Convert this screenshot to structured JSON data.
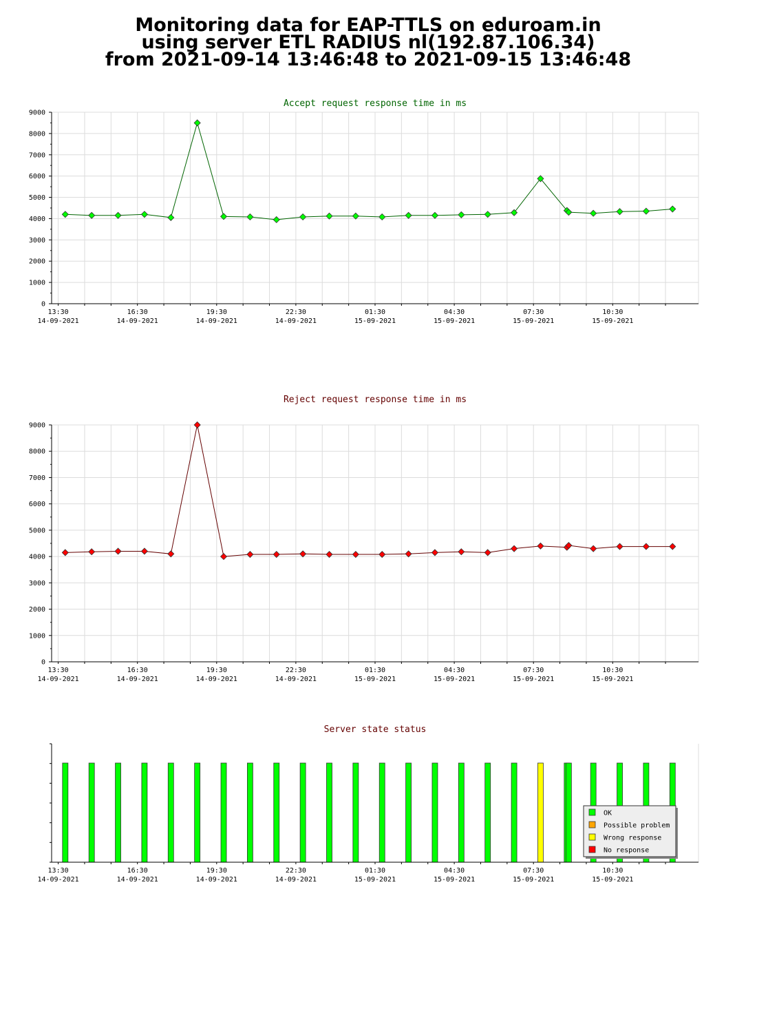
{
  "page": {
    "title_line1": "Monitoring data for EAP-TTLS on eduroam.in",
    "title_line2": "using server ETL RADIUS nl(192.87.106.34)",
    "title_line3": "from 2021-09-14 13:46:48 to 2021-09-15 13:46:48"
  },
  "chart_data": [
    {
      "type": "line",
      "title": "Accept request response time in ms",
      "title_color": "#006400",
      "line_color": "#006400",
      "marker_color": "#00ff00",
      "ylim": [
        0,
        9000
      ],
      "yticks": [
        0,
        1000,
        2000,
        3000,
        4000,
        5000,
        6000,
        7000,
        8000,
        9000
      ],
      "xlim": [
        "2021-09-14 13:15",
        "2021-09-15 13:45"
      ],
      "xticks": [
        {
          "time": "13:30",
          "date": "14-09-2021"
        },
        {
          "time": "16:30",
          "date": "14-09-2021"
        },
        {
          "time": "19:30",
          "date": "14-09-2021"
        },
        {
          "time": "22:30",
          "date": "14-09-2021"
        },
        {
          "time": "01:30",
          "date": "15-09-2021"
        },
        {
          "time": "04:30",
          "date": "15-09-2021"
        },
        {
          "time": "07:30",
          "date": "15-09-2021"
        },
        {
          "time": "10:30",
          "date": "15-09-2021"
        }
      ],
      "grid": true,
      "series": [
        {
          "x": [
            "2021-09-14 13:46",
            "2021-09-14 14:46",
            "2021-09-14 15:46",
            "2021-09-14 16:46",
            "2021-09-14 17:46",
            "2021-09-14 18:46",
            "2021-09-14 19:46",
            "2021-09-14 20:46",
            "2021-09-14 21:46",
            "2021-09-14 22:46",
            "2021-09-14 23:46",
            "2021-09-15 00:46",
            "2021-09-15 01:46",
            "2021-09-15 02:46",
            "2021-09-15 03:46",
            "2021-09-15 04:46",
            "2021-09-15 05:46",
            "2021-09-15 06:46",
            "2021-09-15 07:46",
            "2021-09-15 08:46",
            "2021-09-15 08:50",
            "2021-09-15 09:46",
            "2021-09-15 10:46",
            "2021-09-15 11:46",
            "2021-09-15 12:46"
          ],
          "values": [
            4200,
            4150,
            4150,
            4200,
            4050,
            8500,
            4100,
            4080,
            3950,
            4080,
            4120,
            4120,
            4080,
            4150,
            4150,
            4180,
            4200,
            4280,
            5880,
            4380,
            4300,
            4250,
            4330,
            4350,
            4450
          ]
        }
      ]
    },
    {
      "type": "line",
      "title": "Reject request response time in ms",
      "title_color": "#640000",
      "line_color": "#640000",
      "marker_color": "#ff0000",
      "ylim": [
        0,
        9000
      ],
      "yticks": [
        0,
        1000,
        2000,
        3000,
        4000,
        5000,
        6000,
        7000,
        8000,
        9000
      ],
      "xlim": [
        "2021-09-14 13:15",
        "2021-09-15 13:45"
      ],
      "xticks": [
        {
          "time": "13:30",
          "date": "14-09-2021"
        },
        {
          "time": "16:30",
          "date": "14-09-2021"
        },
        {
          "time": "19:30",
          "date": "14-09-2021"
        },
        {
          "time": "22:30",
          "date": "14-09-2021"
        },
        {
          "time": "01:30",
          "date": "15-09-2021"
        },
        {
          "time": "04:30",
          "date": "15-09-2021"
        },
        {
          "time": "07:30",
          "date": "15-09-2021"
        },
        {
          "time": "10:30",
          "date": "15-09-2021"
        }
      ],
      "grid": true,
      "series": [
        {
          "x": [
            "2021-09-14 13:46",
            "2021-09-14 14:46",
            "2021-09-14 15:46",
            "2021-09-14 16:46",
            "2021-09-14 17:46",
            "2021-09-14 18:46",
            "2021-09-14 19:46",
            "2021-09-14 20:46",
            "2021-09-14 21:46",
            "2021-09-14 22:46",
            "2021-09-14 23:46",
            "2021-09-15 00:46",
            "2021-09-15 01:46",
            "2021-09-15 02:46",
            "2021-09-15 03:46",
            "2021-09-15 04:46",
            "2021-09-15 05:46",
            "2021-09-15 06:46",
            "2021-09-15 07:46",
            "2021-09-15 08:46",
            "2021-09-15 08:50",
            "2021-09-15 09:46",
            "2021-09-15 10:46",
            "2021-09-15 11:46",
            "2021-09-15 12:46"
          ],
          "values": [
            4150,
            4180,
            4200,
            4200,
            4100,
            9000,
            4000,
            4080,
            4080,
            4100,
            4080,
            4080,
            4080,
            4100,
            4150,
            4180,
            4150,
            4300,
            4400,
            4350,
            4420,
            4300,
            4380,
            4380,
            4380
          ]
        }
      ]
    },
    {
      "type": "bar",
      "title": "Server state status",
      "title_color": "#640000",
      "xlim": [
        "2021-09-14 13:15",
        "2021-09-15 13:45"
      ],
      "xticks": [
        {
          "time": "13:30",
          "date": "14-09-2021"
        },
        {
          "time": "16:30",
          "date": "14-09-2021"
        },
        {
          "time": "19:30",
          "date": "14-09-2021"
        },
        {
          "time": "22:30",
          "date": "14-09-2021"
        },
        {
          "time": "01:30",
          "date": "15-09-2021"
        },
        {
          "time": "04:30",
          "date": "15-09-2021"
        },
        {
          "time": "07:30",
          "date": "15-09-2021"
        },
        {
          "time": "10:30",
          "date": "15-09-2021"
        }
      ],
      "legend_position": "bottom-right",
      "legend": [
        {
          "label": "OK",
          "color": "#00ff00"
        },
        {
          "label": "Possible problem",
          "color": "#ffa500"
        },
        {
          "label": "Wrong response",
          "color": "#ffff00"
        },
        {
          "label": "No response",
          "color": "#ff0000"
        }
      ],
      "bars": [
        {
          "x": "2021-09-14 13:46",
          "state": "OK"
        },
        {
          "x": "2021-09-14 14:46",
          "state": "OK"
        },
        {
          "x": "2021-09-14 15:46",
          "state": "OK"
        },
        {
          "x": "2021-09-14 16:46",
          "state": "OK"
        },
        {
          "x": "2021-09-14 17:46",
          "state": "OK"
        },
        {
          "x": "2021-09-14 18:46",
          "state": "OK"
        },
        {
          "x": "2021-09-14 19:46",
          "state": "OK"
        },
        {
          "x": "2021-09-14 20:46",
          "state": "OK"
        },
        {
          "x": "2021-09-14 21:46",
          "state": "OK"
        },
        {
          "x": "2021-09-14 22:46",
          "state": "OK"
        },
        {
          "x": "2021-09-14 23:46",
          "state": "OK"
        },
        {
          "x": "2021-09-15 00:46",
          "state": "OK"
        },
        {
          "x": "2021-09-15 01:46",
          "state": "OK"
        },
        {
          "x": "2021-09-15 02:46",
          "state": "OK"
        },
        {
          "x": "2021-09-15 03:46",
          "state": "OK"
        },
        {
          "x": "2021-09-15 04:46",
          "state": "OK"
        },
        {
          "x": "2021-09-15 05:46",
          "state": "OK"
        },
        {
          "x": "2021-09-15 06:46",
          "state": "OK"
        },
        {
          "x": "2021-09-15 07:46",
          "state": "Wrong response"
        },
        {
          "x": "2021-09-15 08:46",
          "state": "OK"
        },
        {
          "x": "2021-09-15 08:50",
          "state": "OK"
        },
        {
          "x": "2021-09-15 09:46",
          "state": "OK"
        },
        {
          "x": "2021-09-15 10:46",
          "state": "OK"
        },
        {
          "x": "2021-09-15 11:46",
          "state": "OK"
        },
        {
          "x": "2021-09-15 12:46",
          "state": "OK"
        }
      ]
    }
  ]
}
